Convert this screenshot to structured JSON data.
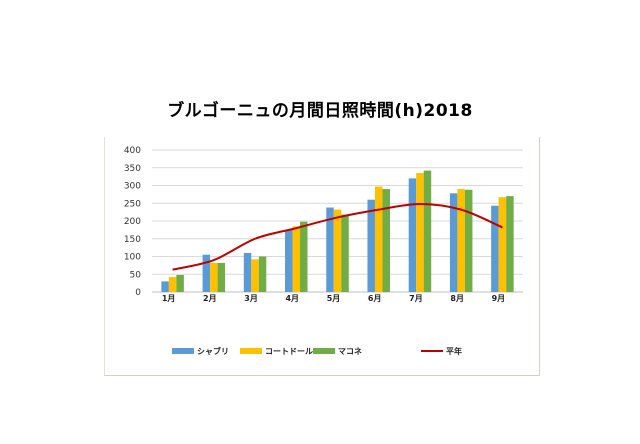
{
  "chart_data": {
    "type": "bar",
    "title": "ブルゴーニュの月間日照時間(h)2018",
    "xlabel": "",
    "ylabel": "",
    "categories": [
      "1月",
      "2月",
      "3月",
      "4月",
      "5月",
      "6月",
      "7月",
      "8月",
      "9月"
    ],
    "ylim": [
      0,
      400
    ],
    "yticks": [
      0,
      50,
      100,
      150,
      200,
      250,
      300,
      350,
      400
    ],
    "grid": true,
    "legend_position": "bottom",
    "series": [
      {
        "name": "シャブリ",
        "type": "bar",
        "color": "#5b9bd5",
        "values": [
          30,
          105,
          110,
          175,
          238,
          260,
          320,
          278,
          243
        ]
      },
      {
        "name": "コートドール",
        "type": "bar",
        "color": "#ffc000",
        "values": [
          42,
          82,
          92,
          185,
          232,
          297,
          335,
          290,
          267
        ]
      },
      {
        "name": "マコネ",
        "type": "bar",
        "color": "#70ad47",
        "values": [
          48,
          82,
          100,
          198,
          218,
          290,
          342,
          288,
          270
        ]
      },
      {
        "name": "平年",
        "type": "line",
        "color": "#c00000",
        "values": [
          63,
          90,
          150,
          180,
          210,
          232,
          248,
          232,
          182
        ]
      }
    ]
  }
}
